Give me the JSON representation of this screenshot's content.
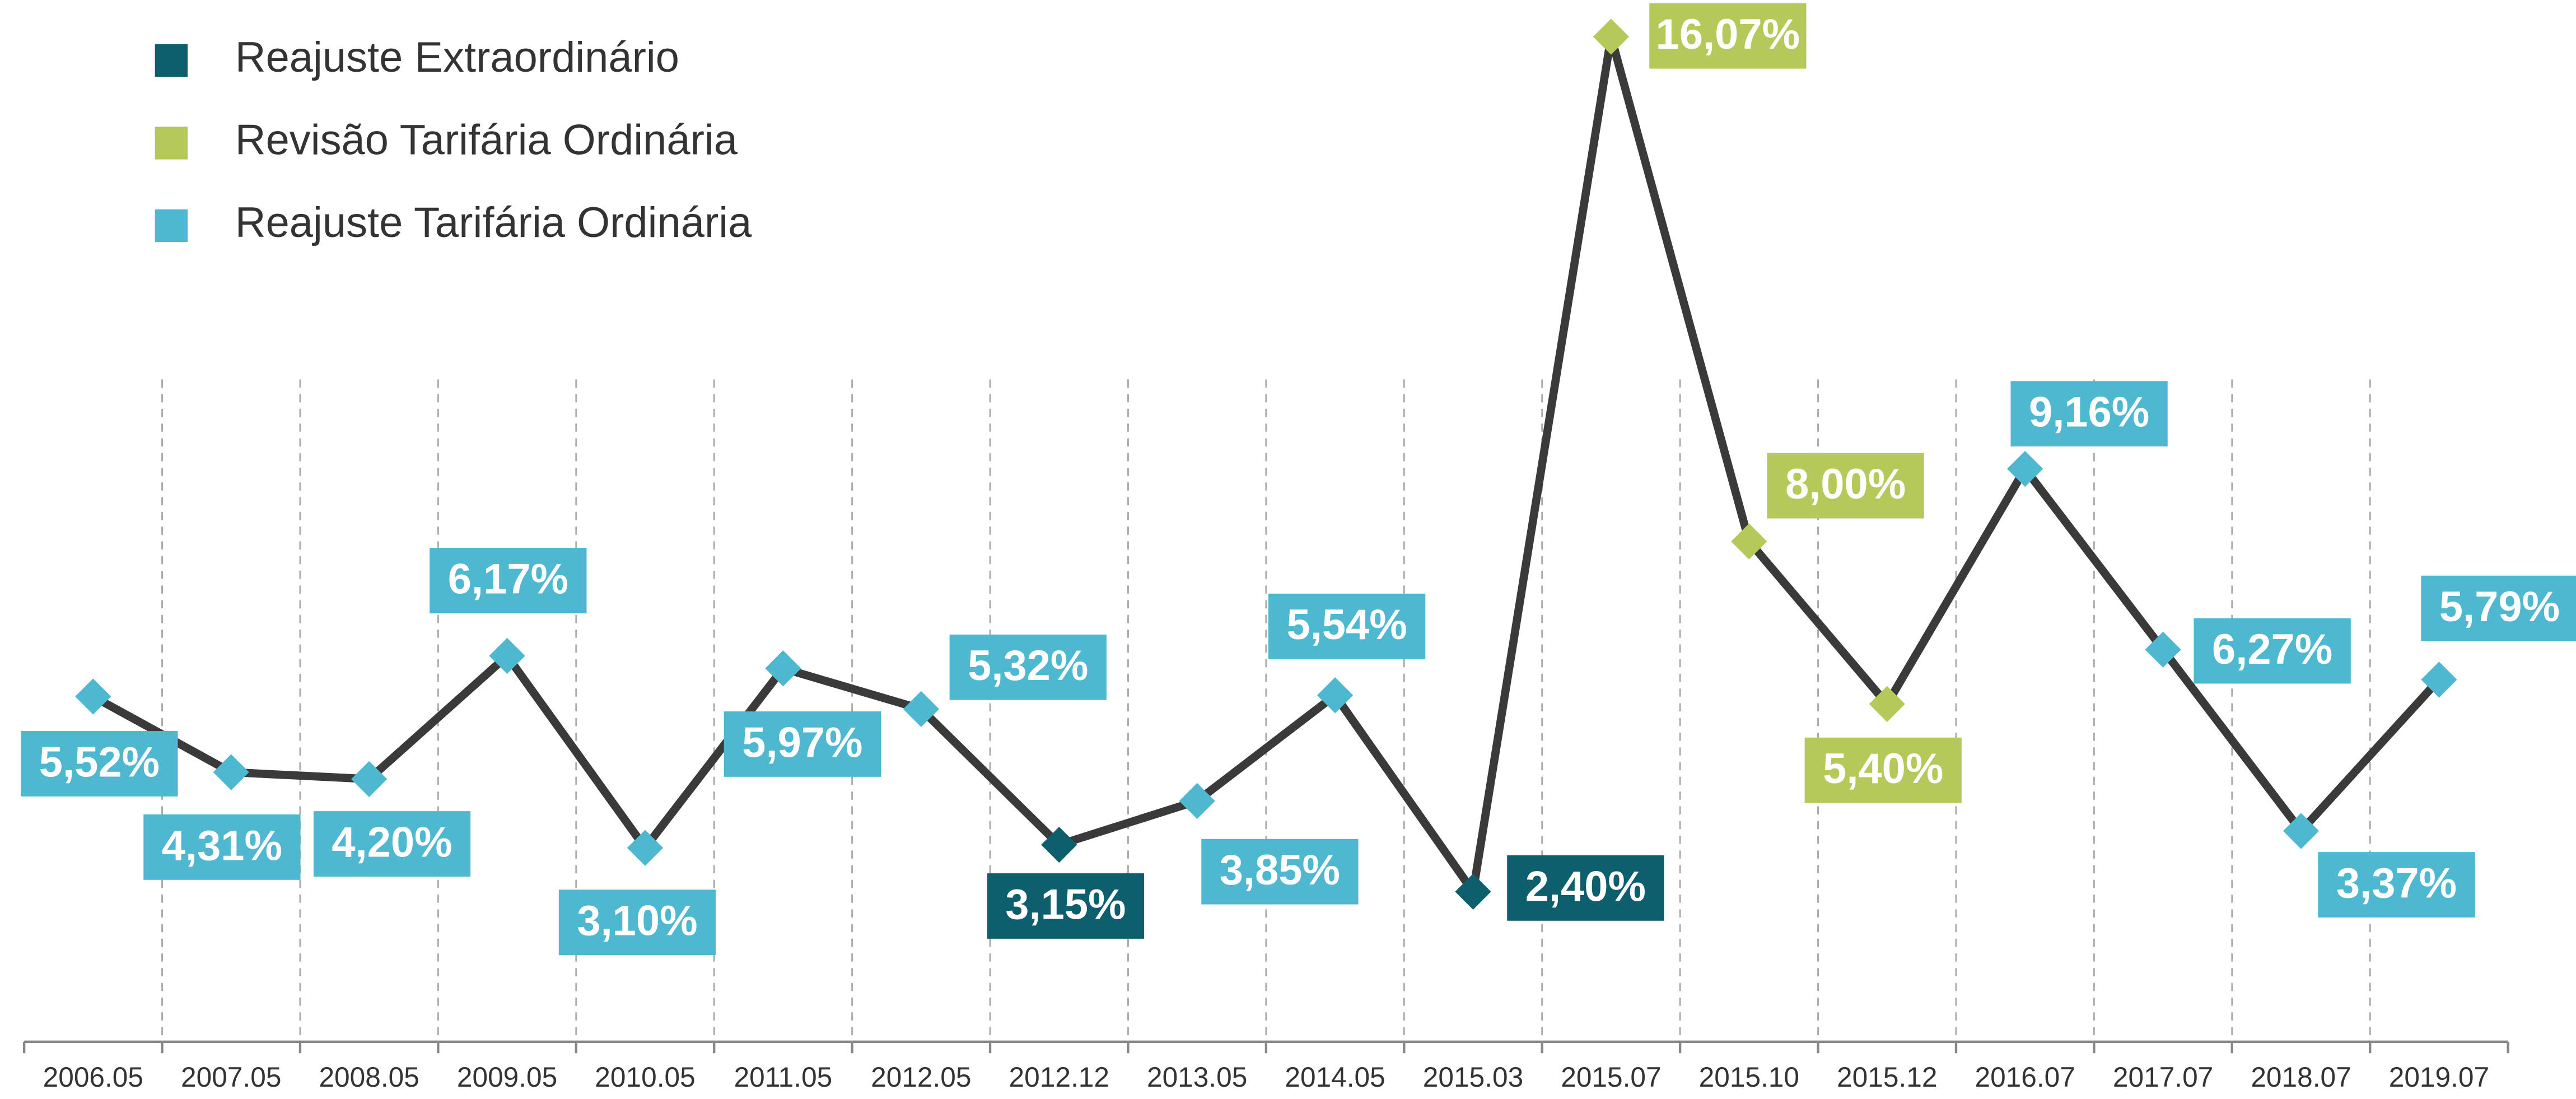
{
  "chart_data": {
    "type": "line",
    "categories": [
      "2006.05",
      "2007.05",
      "2008.05",
      "2009.05",
      "2010.05",
      "2011.05",
      "2012.05",
      "2012.12",
      "2013.05",
      "2014.05",
      "2015.03",
      "2015.07",
      "2015.10",
      "2015.12",
      "2016.07",
      "2017.07",
      "2018.07",
      "2019.07"
    ],
    "line_color": "#3a3a3a",
    "ylim": [
      0,
      16.5
    ],
    "series": [
      {
        "name": "Reajuste Extraordinário",
        "color": "#0e5f6e",
        "values": [
          null,
          null,
          null,
          null,
          null,
          null,
          null,
          3.15,
          null,
          null,
          2.4,
          null,
          null,
          null,
          null,
          null,
          null,
          null
        ],
        "value_labels": [
          null,
          null,
          null,
          null,
          null,
          null,
          null,
          "3,15%",
          null,
          null,
          "2,40%",
          null,
          null,
          null,
          null,
          null,
          null,
          null
        ]
      },
      {
        "name": "Revisão Tarifária Ordinária",
        "color": "#b5c95a",
        "values": [
          null,
          null,
          null,
          null,
          null,
          null,
          null,
          null,
          null,
          null,
          null,
          16.07,
          8.0,
          5.4,
          null,
          null,
          null,
          null
        ],
        "value_labels": [
          null,
          null,
          null,
          null,
          null,
          null,
          null,
          null,
          null,
          null,
          null,
          "16,07%",
          "8,00%",
          "5,40%",
          null,
          null,
          null,
          null
        ]
      },
      {
        "name": "Reajuste Tarifária Ordinária",
        "color": "#4db8cf",
        "values": [
          5.52,
          4.31,
          4.2,
          6.17,
          3.1,
          5.97,
          5.32,
          null,
          3.85,
          5.54,
          null,
          null,
          null,
          null,
          9.16,
          6.27,
          3.37,
          5.79
        ],
        "value_labels": [
          "5,52%",
          "4,31%",
          "4,20%",
          "6,17%",
          "3,10%",
          "5,97%",
          "5,32%",
          null,
          "3,85%",
          "5,54%",
          null,
          null,
          null,
          null,
          "9,16%",
          "6,27%",
          "3,37%",
          "5,79%"
        ]
      }
    ]
  }
}
